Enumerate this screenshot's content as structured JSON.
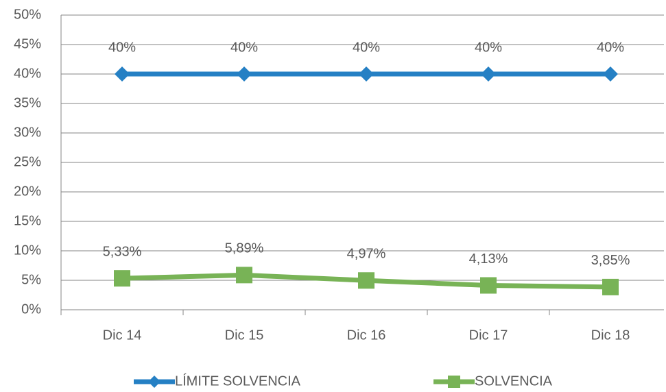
{
  "chart_data": {
    "type": "line",
    "categories": [
      "Dic 14",
      "Dic 15",
      "Dic 16",
      "Dic 17",
      "Dic 18"
    ],
    "series": [
      {
        "name": "LÍMITE SOLVENCIA",
        "color": "#2580c4",
        "marker": "diamond",
        "values": [
          40,
          40,
          40,
          40,
          40
        ],
        "value_labels": [
          "40%",
          "40%",
          "40%",
          "40%",
          "40%"
        ]
      },
      {
        "name": "SOLVENCIA",
        "color": "#78b356",
        "marker": "square",
        "values": [
          5.33,
          5.89,
          4.97,
          4.13,
          3.85
        ],
        "value_labels": [
          "5,33%",
          "5,89%",
          "4,97%",
          "4,13%",
          "3,85%"
        ]
      }
    ],
    "ylim": [
      0,
      50
    ],
    "yticks": [
      {
        "value": 0,
        "label": "0%"
      },
      {
        "value": 5,
        "label": "5%"
      },
      {
        "value": 10,
        "label": "10%"
      },
      {
        "value": 15,
        "label": "15%"
      },
      {
        "value": 20,
        "label": "20%"
      },
      {
        "value": 25,
        "label": "25%"
      },
      {
        "value": 30,
        "label": "30%"
      },
      {
        "value": 35,
        "label": "35%"
      },
      {
        "value": 40,
        "label": "40%"
      },
      {
        "value": 45,
        "label": "45%"
      },
      {
        "value": 50,
        "label": "50%"
      }
    ],
    "grid": true,
    "legend": "bottom"
  }
}
